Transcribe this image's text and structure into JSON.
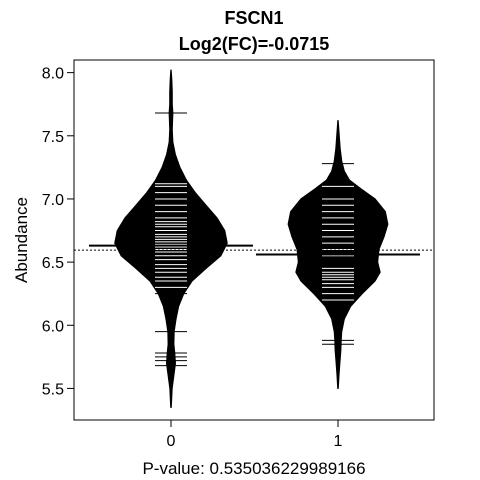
{
  "chart_data": {
    "type": "beanplot",
    "title": "FSCN1",
    "subtitle": "Log2(FC)=-0.0715",
    "ylabel": "Abundance",
    "xlabel": "P-value: 0.535036229989166",
    "categories": [
      "0",
      "1"
    ],
    "ylim": [
      5.25,
      8.1
    ],
    "yticks": [
      "5.5",
      "6.0",
      "6.5",
      "7.0",
      "7.5",
      "8.0"
    ],
    "overall_mean": 6.595,
    "beans": [
      {
        "category": "0",
        "mean": 6.63,
        "range": [
          5.35,
          8.02
        ],
        "density": [
          [
            5.35,
            0.004
          ],
          [
            5.5,
            0.018
          ],
          [
            5.62,
            0.05
          ],
          [
            5.7,
            0.07
          ],
          [
            5.78,
            0.06
          ],
          [
            5.85,
            0.045
          ],
          [
            5.95,
            0.05
          ],
          [
            6.05,
            0.08
          ],
          [
            6.15,
            0.12
          ],
          [
            6.25,
            0.2
          ],
          [
            6.35,
            0.33
          ],
          [
            6.45,
            0.55
          ],
          [
            6.55,
            0.78
          ],
          [
            6.65,
            0.88
          ],
          [
            6.75,
            0.84
          ],
          [
            6.85,
            0.72
          ],
          [
            6.95,
            0.55
          ],
          [
            7.05,
            0.38
          ],
          [
            7.15,
            0.24
          ],
          [
            7.25,
            0.14
          ],
          [
            7.35,
            0.07
          ],
          [
            7.45,
            0.03
          ],
          [
            7.55,
            0.02
          ],
          [
            7.62,
            0.025
          ],
          [
            7.68,
            0.03
          ],
          [
            7.75,
            0.02
          ],
          [
            7.85,
            0.02
          ],
          [
            7.95,
            0.012
          ],
          [
            8.02,
            0.003
          ]
        ],
        "points": [
          5.68,
          5.72,
          5.75,
          5.78,
          5.95,
          6.25,
          6.3,
          6.35,
          6.38,
          6.42,
          6.45,
          6.48,
          6.52,
          6.55,
          6.58,
          6.6,
          6.62,
          6.64,
          6.66,
          6.68,
          6.7,
          6.72,
          6.75,
          6.78,
          6.8,
          6.82,
          6.85,
          6.9,
          6.95,
          7.0,
          7.05,
          7.1,
          7.12,
          7.15,
          7.68
        ]
      },
      {
        "category": "1",
        "mean": 6.56,
        "range": [
          5.5,
          7.62
        ],
        "density": [
          [
            5.5,
            0.004
          ],
          [
            5.6,
            0.015
          ],
          [
            5.7,
            0.03
          ],
          [
            5.8,
            0.045
          ],
          [
            5.88,
            0.05
          ],
          [
            5.95,
            0.06
          ],
          [
            6.05,
            0.1
          ],
          [
            6.15,
            0.2
          ],
          [
            6.25,
            0.38
          ],
          [
            6.35,
            0.58
          ],
          [
            6.42,
            0.66
          ],
          [
            6.5,
            0.62
          ],
          [
            6.6,
            0.64
          ],
          [
            6.7,
            0.72
          ],
          [
            6.8,
            0.78
          ],
          [
            6.9,
            0.74
          ],
          [
            7.0,
            0.58
          ],
          [
            7.08,
            0.36
          ],
          [
            7.15,
            0.18
          ],
          [
            7.22,
            0.1
          ],
          [
            7.3,
            0.06
          ],
          [
            7.4,
            0.035
          ],
          [
            7.5,
            0.02
          ],
          [
            7.62,
            0.003
          ]
        ],
        "points": [
          5.85,
          5.88,
          6.2,
          6.25,
          6.3,
          6.33,
          6.36,
          6.38,
          6.4,
          6.42,
          6.45,
          6.55,
          6.6,
          6.65,
          6.7,
          6.75,
          6.8,
          6.85,
          6.9,
          6.95,
          7.0,
          7.1,
          7.28
        ]
      }
    ]
  }
}
